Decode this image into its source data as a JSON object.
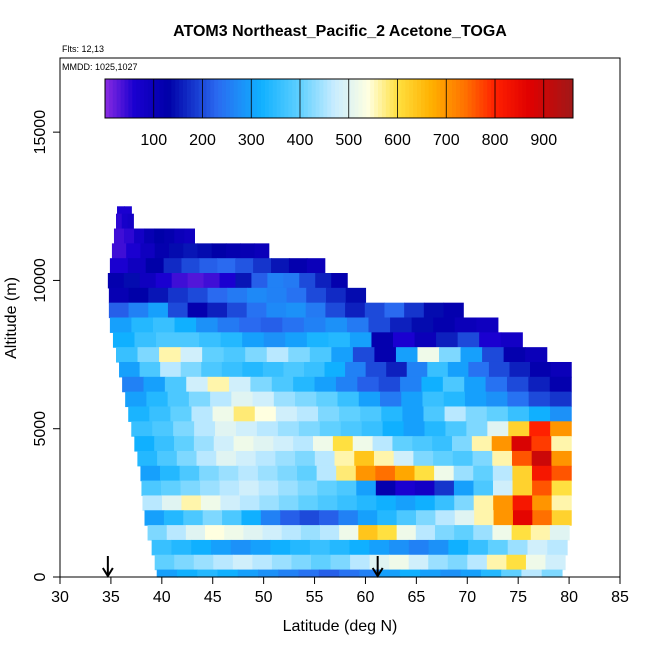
{
  "chart_data": {
    "type": "heatmap",
    "title": "ATOM3 Northeast_Pacific_2 Acetone_TOGA",
    "annotations": [
      "Flts: 12,13",
      "MMDD: 1025,1027"
    ],
    "xlabel": "Latitude (deg N)",
    "ylabel": "Altitude (m)",
    "xlim": [
      30,
      85
    ],
    "ylim": [
      0,
      17500
    ],
    "x_ticks": [
      30,
      35,
      40,
      45,
      50,
      55,
      60,
      65,
      70,
      75,
      80,
      85
    ],
    "y_ticks": [
      0,
      5000,
      10000,
      15000
    ],
    "colorbar": {
      "ticks": [
        100,
        200,
        300,
        400,
        500,
        600,
        700,
        800,
        900
      ],
      "range": [
        0,
        960
      ],
      "stops": [
        {
          "v": 0,
          "c": "#8a2be2"
        },
        {
          "v": 60,
          "c": "#1a00d0"
        },
        {
          "v": 130,
          "c": "#0000a8"
        },
        {
          "v": 230,
          "c": "#2a6af0"
        },
        {
          "v": 320,
          "c": "#10b0ff"
        },
        {
          "v": 400,
          "c": "#60d0ff"
        },
        {
          "v": 470,
          "c": "#c8ecff"
        },
        {
          "v": 540,
          "c": "#ffffe0"
        },
        {
          "v": 600,
          "c": "#ffe040"
        },
        {
          "v": 670,
          "c": "#ffb000"
        },
        {
          "v": 740,
          "c": "#ff7000"
        },
        {
          "v": 800,
          "c": "#ff2000"
        },
        {
          "v": 870,
          "c": "#e00000"
        },
        {
          "v": 960,
          "c": "#a01818"
        }
      ]
    },
    "markers": {
      "arrows_at_latitude": [
        34.7,
        61.2
      ]
    },
    "rows": [
      {
        "z0": 12250,
        "z1": 12500,
        "x0": 35.6,
        "x1": 37.0,
        "v": [
          60,
          60
        ]
      },
      {
        "z0": 11750,
        "z1": 12250,
        "x0": 35.5,
        "x1": 37.2,
        "v": [
          50,
          70,
          80
        ]
      },
      {
        "z0": 11250,
        "z1": 11750,
        "x0": 35.3,
        "x1": 43.2,
        "v": [
          40,
          50,
          80,
          110,
          130,
          120,
          100,
          90
        ]
      },
      {
        "z0": 10750,
        "z1": 11250,
        "x0": 35.1,
        "x1": 50.5,
        "v": [
          40,
          60,
          90,
          120,
          140,
          150,
          140,
          130,
          120,
          110,
          100
        ]
      },
      {
        "z0": 10250,
        "z1": 10750,
        "x0": 34.9,
        "x1": 56.0,
        "v": [
          60,
          90,
          130,
          170,
          200,
          220,
          230,
          210,
          180,
          150,
          120,
          100
        ]
      },
      {
        "z0": 9750,
        "z1": 10250,
        "x0": 34.7,
        "x1": 58.2,
        "v": [
          120,
          140,
          90,
          60,
          40,
          30,
          40,
          60,
          150,
          220,
          260,
          250,
          200,
          160,
          120
        ]
      },
      {
        "z0": 9250,
        "z1": 9750,
        "x0": 34.8,
        "x1": 60.0,
        "v": [
          110,
          130,
          150,
          180,
          200,
          230,
          250,
          270,
          260,
          240,
          200,
          170,
          140
        ]
      },
      {
        "z0": 8750,
        "z1": 9250,
        "x0": 34.8,
        "x1": 69.6,
        "v": [
          220,
          260,
          300,
          200,
          120,
          160,
          200,
          240,
          270,
          280,
          250,
          200,
          160,
          200,
          230,
          180,
          140,
          120
        ]
      },
      {
        "z0": 8250,
        "z1": 8750,
        "x0": 34.9,
        "x1": 73.0,
        "v": [
          300,
          340,
          360,
          320,
          280,
          250,
          230,
          220,
          240,
          260,
          280,
          250,
          200,
          160,
          140,
          120,
          100,
          90
        ]
      },
      {
        "z0": 7750,
        "z1": 8250,
        "x0": 35.2,
        "x1": 75.4,
        "v": [
          320,
          360,
          380,
          380,
          360,
          340,
          300,
          280,
          300,
          330,
          340,
          300,
          120,
          60,
          100,
          160,
          200,
          60,
          80
        ]
      },
      {
        "z0": 7250,
        "z1": 7750,
        "x0": 35.5,
        "x1": 77.8,
        "v": [
          360,
          420,
          560,
          480,
          400,
          380,
          420,
          460,
          420,
          380,
          300,
          200,
          120,
          300,
          520,
          420,
          300,
          200,
          120,
          100
        ]
      },
      {
        "z0": 6750,
        "z1": 7250,
        "x0": 35.8,
        "x1": 80.2,
        "v": [
          300,
          380,
          460,
          420,
          380,
          360,
          340,
          360,
          380,
          360,
          320,
          260,
          200,
          160,
          260,
          360,
          300,
          240,
          200,
          160,
          120,
          100
        ]
      },
      {
        "z0": 6250,
        "z1": 6750,
        "x0": 36.1,
        "x1": 80.2,
        "v": [
          260,
          300,
          380,
          480,
          560,
          480,
          420,
          380,
          340,
          300,
          260,
          220,
          200,
          260,
          320,
          380,
          300,
          240,
          200,
          160,
          120
        ]
      },
      {
        "z0": 5750,
        "z1": 6250,
        "x0": 36.4,
        "x1": 80.2,
        "v": [
          300,
          340,
          380,
          420,
          460,
          500,
          480,
          440,
          420,
          400,
          360,
          300,
          250,
          300,
          360,
          340,
          300,
          280,
          240,
          200,
          180
        ]
      },
      {
        "z0": 5250,
        "z1": 5750,
        "x0": 36.7,
        "x1": 80.2,
        "v": [
          330,
          360,
          400,
          460,
          520,
          580,
          540,
          480,
          460,
          420,
          400,
          380,
          340,
          300,
          380,
          460,
          420,
          400,
          360,
          320,
          280
        ]
      },
      {
        "z0": 4750,
        "z1": 5250,
        "x0": 37.0,
        "x1": 80.2,
        "v": [
          360,
          380,
          420,
          460,
          500,
          480,
          460,
          440,
          420,
          400,
          380,
          360,
          320,
          300,
          340,
          380,
          420,
          500,
          620,
          800,
          700
        ]
      },
      {
        "z0": 4250,
        "z1": 4750,
        "x0": 37.3,
        "x1": 80.2,
        "v": [
          320,
          360,
          400,
          440,
          480,
          520,
          500,
          480,
          460,
          520,
          600,
          520,
          460,
          400,
          380,
          360,
          420,
          560,
          700,
          880,
          780,
          560
        ]
      },
      {
        "z0": 3750,
        "z1": 4250,
        "x0": 37.6,
        "x1": 80.2,
        "v": [
          340,
          380,
          420,
          460,
          500,
          480,
          460,
          440,
          420,
          460,
          560,
          640,
          560,
          480,
          420,
          400,
          380,
          420,
          560,
          760,
          900,
          700
        ]
      },
      {
        "z0": 3250,
        "z1": 3750,
        "x0": 37.9,
        "x1": 80.2,
        "v": [
          300,
          340,
          380,
          420,
          440,
          460,
          440,
          420,
          400,
          460,
          580,
          700,
          740,
          680,
          600,
          520,
          440,
          400,
          460,
          620,
          820,
          760
        ]
      },
      {
        "z0": 2750,
        "z1": 3250,
        "x0": 38.0,
        "x1": 80.2,
        "v": [
          380,
          400,
          420,
          440,
          460,
          480,
          460,
          440,
          420,
          400,
          380,
          300,
          120,
          60,
          80,
          180,
          300,
          380,
          480,
          620,
          760,
          600
        ]
      },
      {
        "z0": 2250,
        "z1": 2750,
        "x0": 38.1,
        "x1": 80.2,
        "v": [
          460,
          500,
          560,
          520,
          480,
          460,
          440,
          420,
          400,
          380,
          360,
          340,
          320,
          300,
          320,
          360,
          420,
          560,
          700,
          820,
          700,
          560
        ]
      },
      {
        "z0": 1750,
        "z1": 2250,
        "x0": 38.3,
        "x1": 80.2,
        "v": [
          300,
          340,
          380,
          420,
          380,
          320,
          260,
          220,
          200,
          220,
          260,
          300,
          340,
          380,
          420,
          460,
          500,
          560,
          700,
          860,
          740,
          620
        ]
      },
      {
        "z0": 1250,
        "z1": 1750,
        "x0": 38.6,
        "x1": 80.0,
        "v": [
          420,
          460,
          500,
          540,
          520,
          500,
          480,
          460,
          440,
          460,
          520,
          640,
          600,
          520,
          460,
          420,
          400,
          440,
          520,
          600,
          560,
          500
        ]
      },
      {
        "z0": 750,
        "z1": 1250,
        "x0": 39.0,
        "x1": 79.8,
        "v": [
          360,
          340,
          320,
          300,
          280,
          300,
          320,
          340,
          360,
          340,
          320,
          300,
          280,
          260,
          280,
          320,
          360,
          400,
          440,
          480,
          460
        ]
      },
      {
        "z0": 250,
        "z1": 750,
        "x0": 39.3,
        "x1": 79.6,
        "v": [
          400,
          420,
          440,
          460,
          480,
          460,
          440,
          420,
          400,
          420,
          460,
          500,
          520,
          480,
          440,
          420,
          460,
          560,
          600,
          520,
          480
        ]
      },
      {
        "z0": 0,
        "z1": 250,
        "x0": 39.5,
        "x1": 79.3,
        "v": [
          300,
          320,
          340,
          320,
          300,
          280,
          260,
          240,
          220,
          240,
          260,
          300,
          320,
          300,
          280,
          300,
          340,
          400,
          460,
          420
        ]
      }
    ]
  }
}
